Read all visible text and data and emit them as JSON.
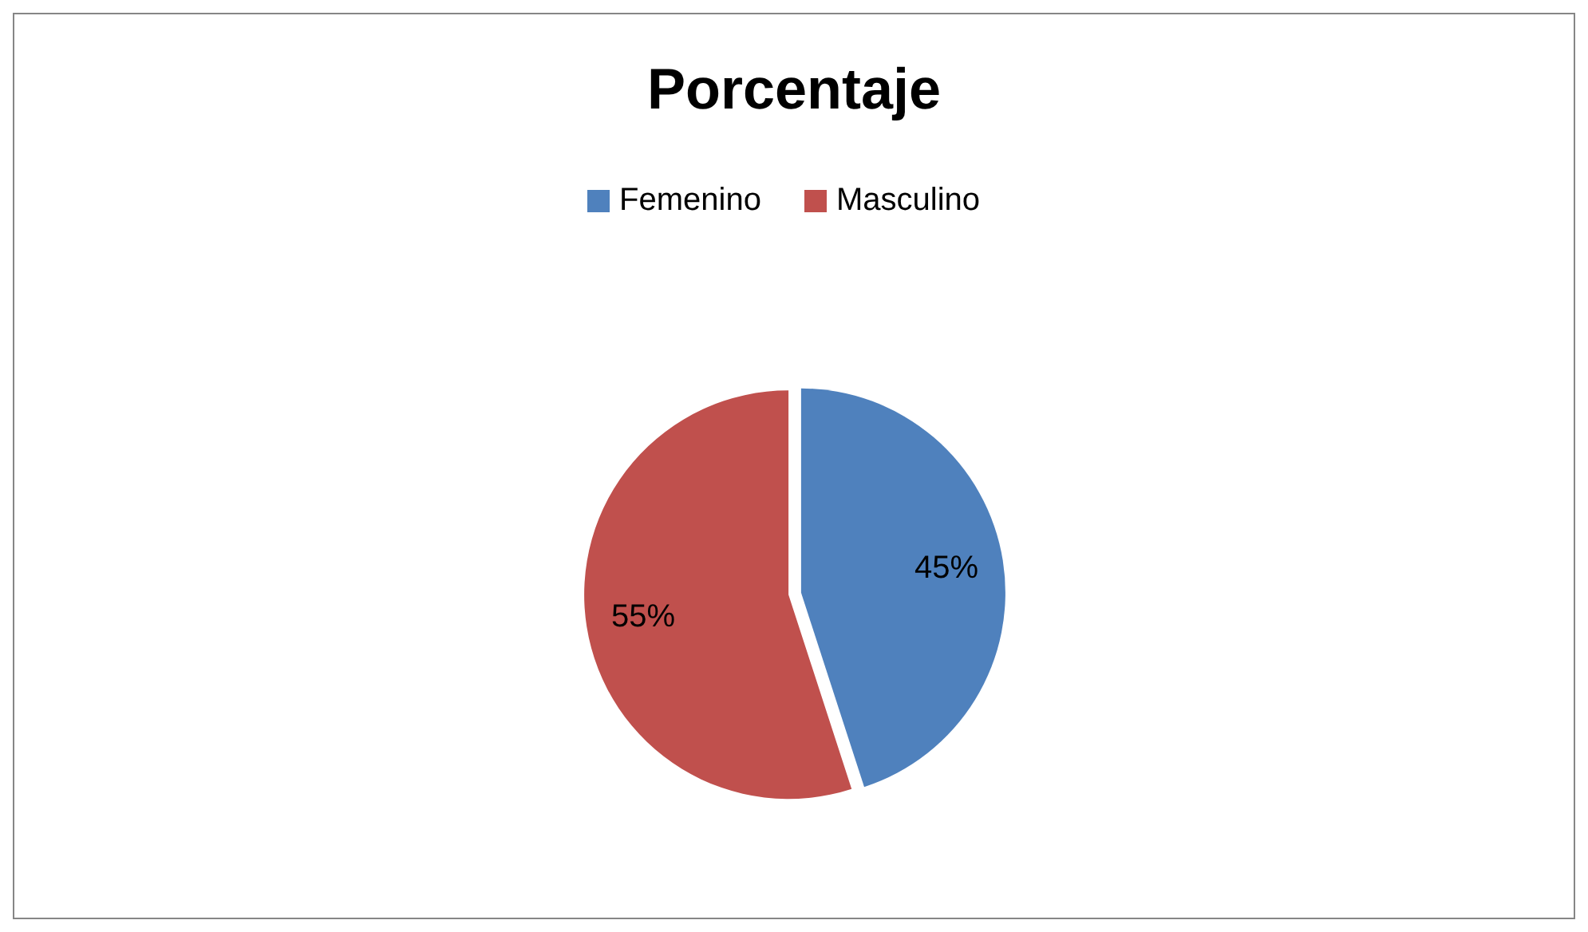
{
  "chart_data": {
    "type": "pie",
    "title": "Porcentaje",
    "categories": [
      "Femenino",
      "Masculino"
    ],
    "values": [
      45,
      55
    ],
    "colors": [
      "#4f81bd",
      "#c0504d"
    ],
    "value_labels": [
      "45%",
      "55%"
    ],
    "legend": "top"
  }
}
